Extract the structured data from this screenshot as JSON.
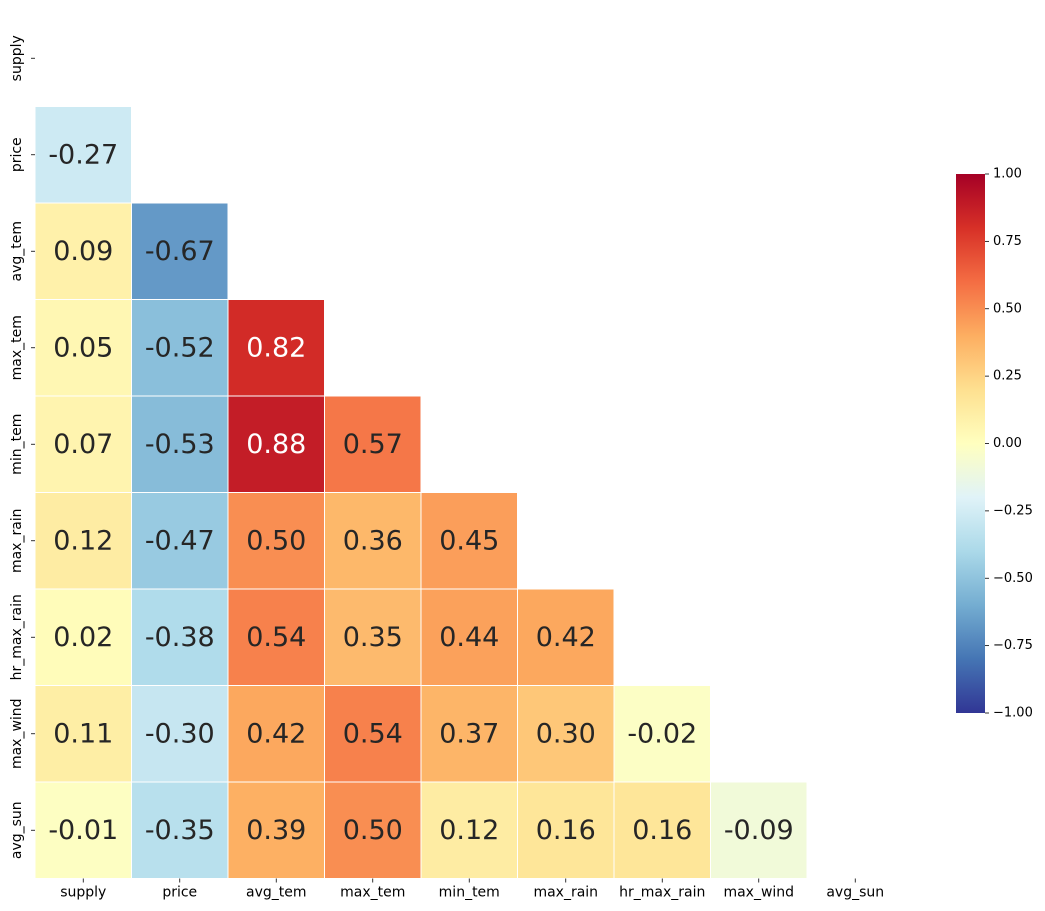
{
  "chart_data": {
    "type": "heatmap",
    "title": "",
    "variables": [
      "supply",
      "price",
      "avg_tem",
      "max_tem",
      "min_tem",
      "max_rain",
      "hr_max_rain",
      "max_wind",
      "avg_sun"
    ],
    "matrix": [
      [
        null,
        null,
        null,
        null,
        null,
        null,
        null,
        null,
        null
      ],
      [
        -0.27,
        null,
        null,
        null,
        null,
        null,
        null,
        null,
        null
      ],
      [
        0.09,
        -0.67,
        null,
        null,
        null,
        null,
        null,
        null,
        null
      ],
      [
        0.05,
        -0.52,
        0.82,
        null,
        null,
        null,
        null,
        null,
        null
      ],
      [
        0.07,
        -0.53,
        0.88,
        0.57,
        null,
        null,
        null,
        null,
        null
      ],
      [
        0.12,
        -0.47,
        0.5,
        0.36,
        0.45,
        null,
        null,
        null,
        null
      ],
      [
        0.02,
        -0.38,
        0.54,
        0.35,
        0.44,
        0.42,
        null,
        null,
        null
      ],
      [
        0.11,
        -0.3,
        0.42,
        0.54,
        0.37,
        0.3,
        -0.02,
        null,
        null
      ],
      [
        -0.01,
        -0.35,
        0.39,
        0.5,
        0.12,
        0.16,
        0.16,
        -0.09,
        null
      ]
    ],
    "mask": "upper-triangle-including-diagonal",
    "value_format": "0.00",
    "colormap": "RdYlBu_r",
    "vmin": -1.0,
    "vmax": 1.0,
    "colorbar": {
      "ticks": [
        "1.00",
        "0.75",
        "0.50",
        "0.25",
        "0.00",
        "−0.25",
        "−0.50",
        "−0.75",
        "−1.00"
      ],
      "tick_values": [
        1.0,
        0.75,
        0.5,
        0.25,
        0.0,
        -0.25,
        -0.5,
        -0.75,
        -1.0
      ],
      "placement": "right"
    },
    "legend": "colorbar-right",
    "grid": false
  }
}
